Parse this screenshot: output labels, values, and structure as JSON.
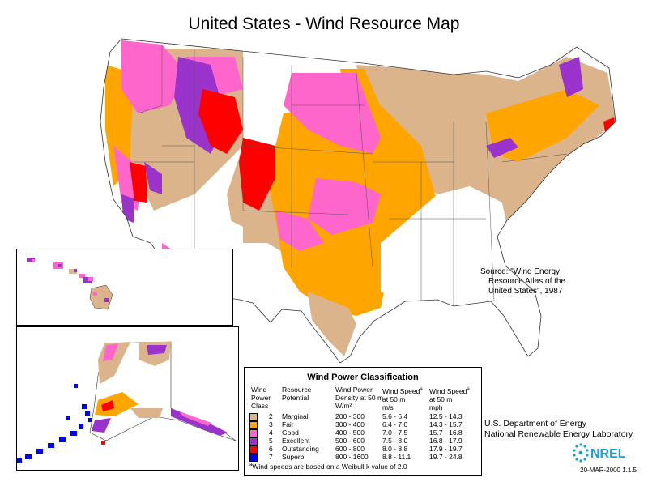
{
  "title": "United States - Wind Resource Map",
  "source": {
    "line1": "Source:  \"Wind Energy",
    "line2": "Resource Atlas of the",
    "line3": "United States\", 1987"
  },
  "legend": {
    "title": "Wind Power Classification",
    "headers": {
      "class": [
        "Wind",
        "Power",
        "Class"
      ],
      "potential": [
        "Resource",
        "Potential"
      ],
      "density": [
        "Wind Power",
        "Density at 50 m",
        "W/m²"
      ],
      "speed_ms": [
        "Wind Speed",
        "at 50 m",
        "m/s"
      ],
      "speed_mph": [
        "Wind Speed",
        "at 50 m",
        "mph"
      ],
      "superscript": "a"
    },
    "rows": [
      {
        "class": "2",
        "potential": "Marginal",
        "density": "200 - 300",
        "ms": "5.6 - 6.4",
        "mph": "12.5 - 14.3",
        "color": "#dcb48c"
      },
      {
        "class": "3",
        "potential": "Fair",
        "density": "300 - 400",
        "ms": "6.4 - 7.0",
        "mph": "14.3 - 15.7",
        "color": "#ffa500"
      },
      {
        "class": "4",
        "potential": "Good",
        "density": "400 - 500",
        "ms": "7.0 - 7.5",
        "mph": "15.7 - 16.8",
        "color": "#ff66cc"
      },
      {
        "class": "5",
        "potential": "Excellent",
        "density": "500 - 600",
        "ms": "7.5 - 8.0",
        "mph": "16.8 - 17.9",
        "color": "#9933cc"
      },
      {
        "class": "6",
        "potential": "Outstanding",
        "density": "600 - 800",
        "ms": "8.0 - 8.8",
        "mph": "17.9 - 19.7",
        "color": "#ff0000"
      },
      {
        "class": "7",
        "potential": "Superb",
        "density": "800 - 1600",
        "ms": "8.8 - 11.1",
        "mph": "19.7 - 24.8",
        "color": "#0000ff"
      }
    ],
    "footnote_sup": "a",
    "footnote": "Wind speeds are based on a Weibull k value of 2.0"
  },
  "agency": {
    "line1": "U.S. Department of Energy",
    "line2": "National Renewable Energy Laboratory"
  },
  "logo_text": "NREL",
  "version": "20-MAR-2000 1.1.5",
  "colors": {
    "class2": "#dcb48c",
    "class3": "#ffa500",
    "class4": "#ff66cc",
    "class5": "#9933cc",
    "class6": "#ff0000",
    "class7": "#0000ff",
    "borders": "#555555",
    "logo": "#1a9fd6"
  }
}
